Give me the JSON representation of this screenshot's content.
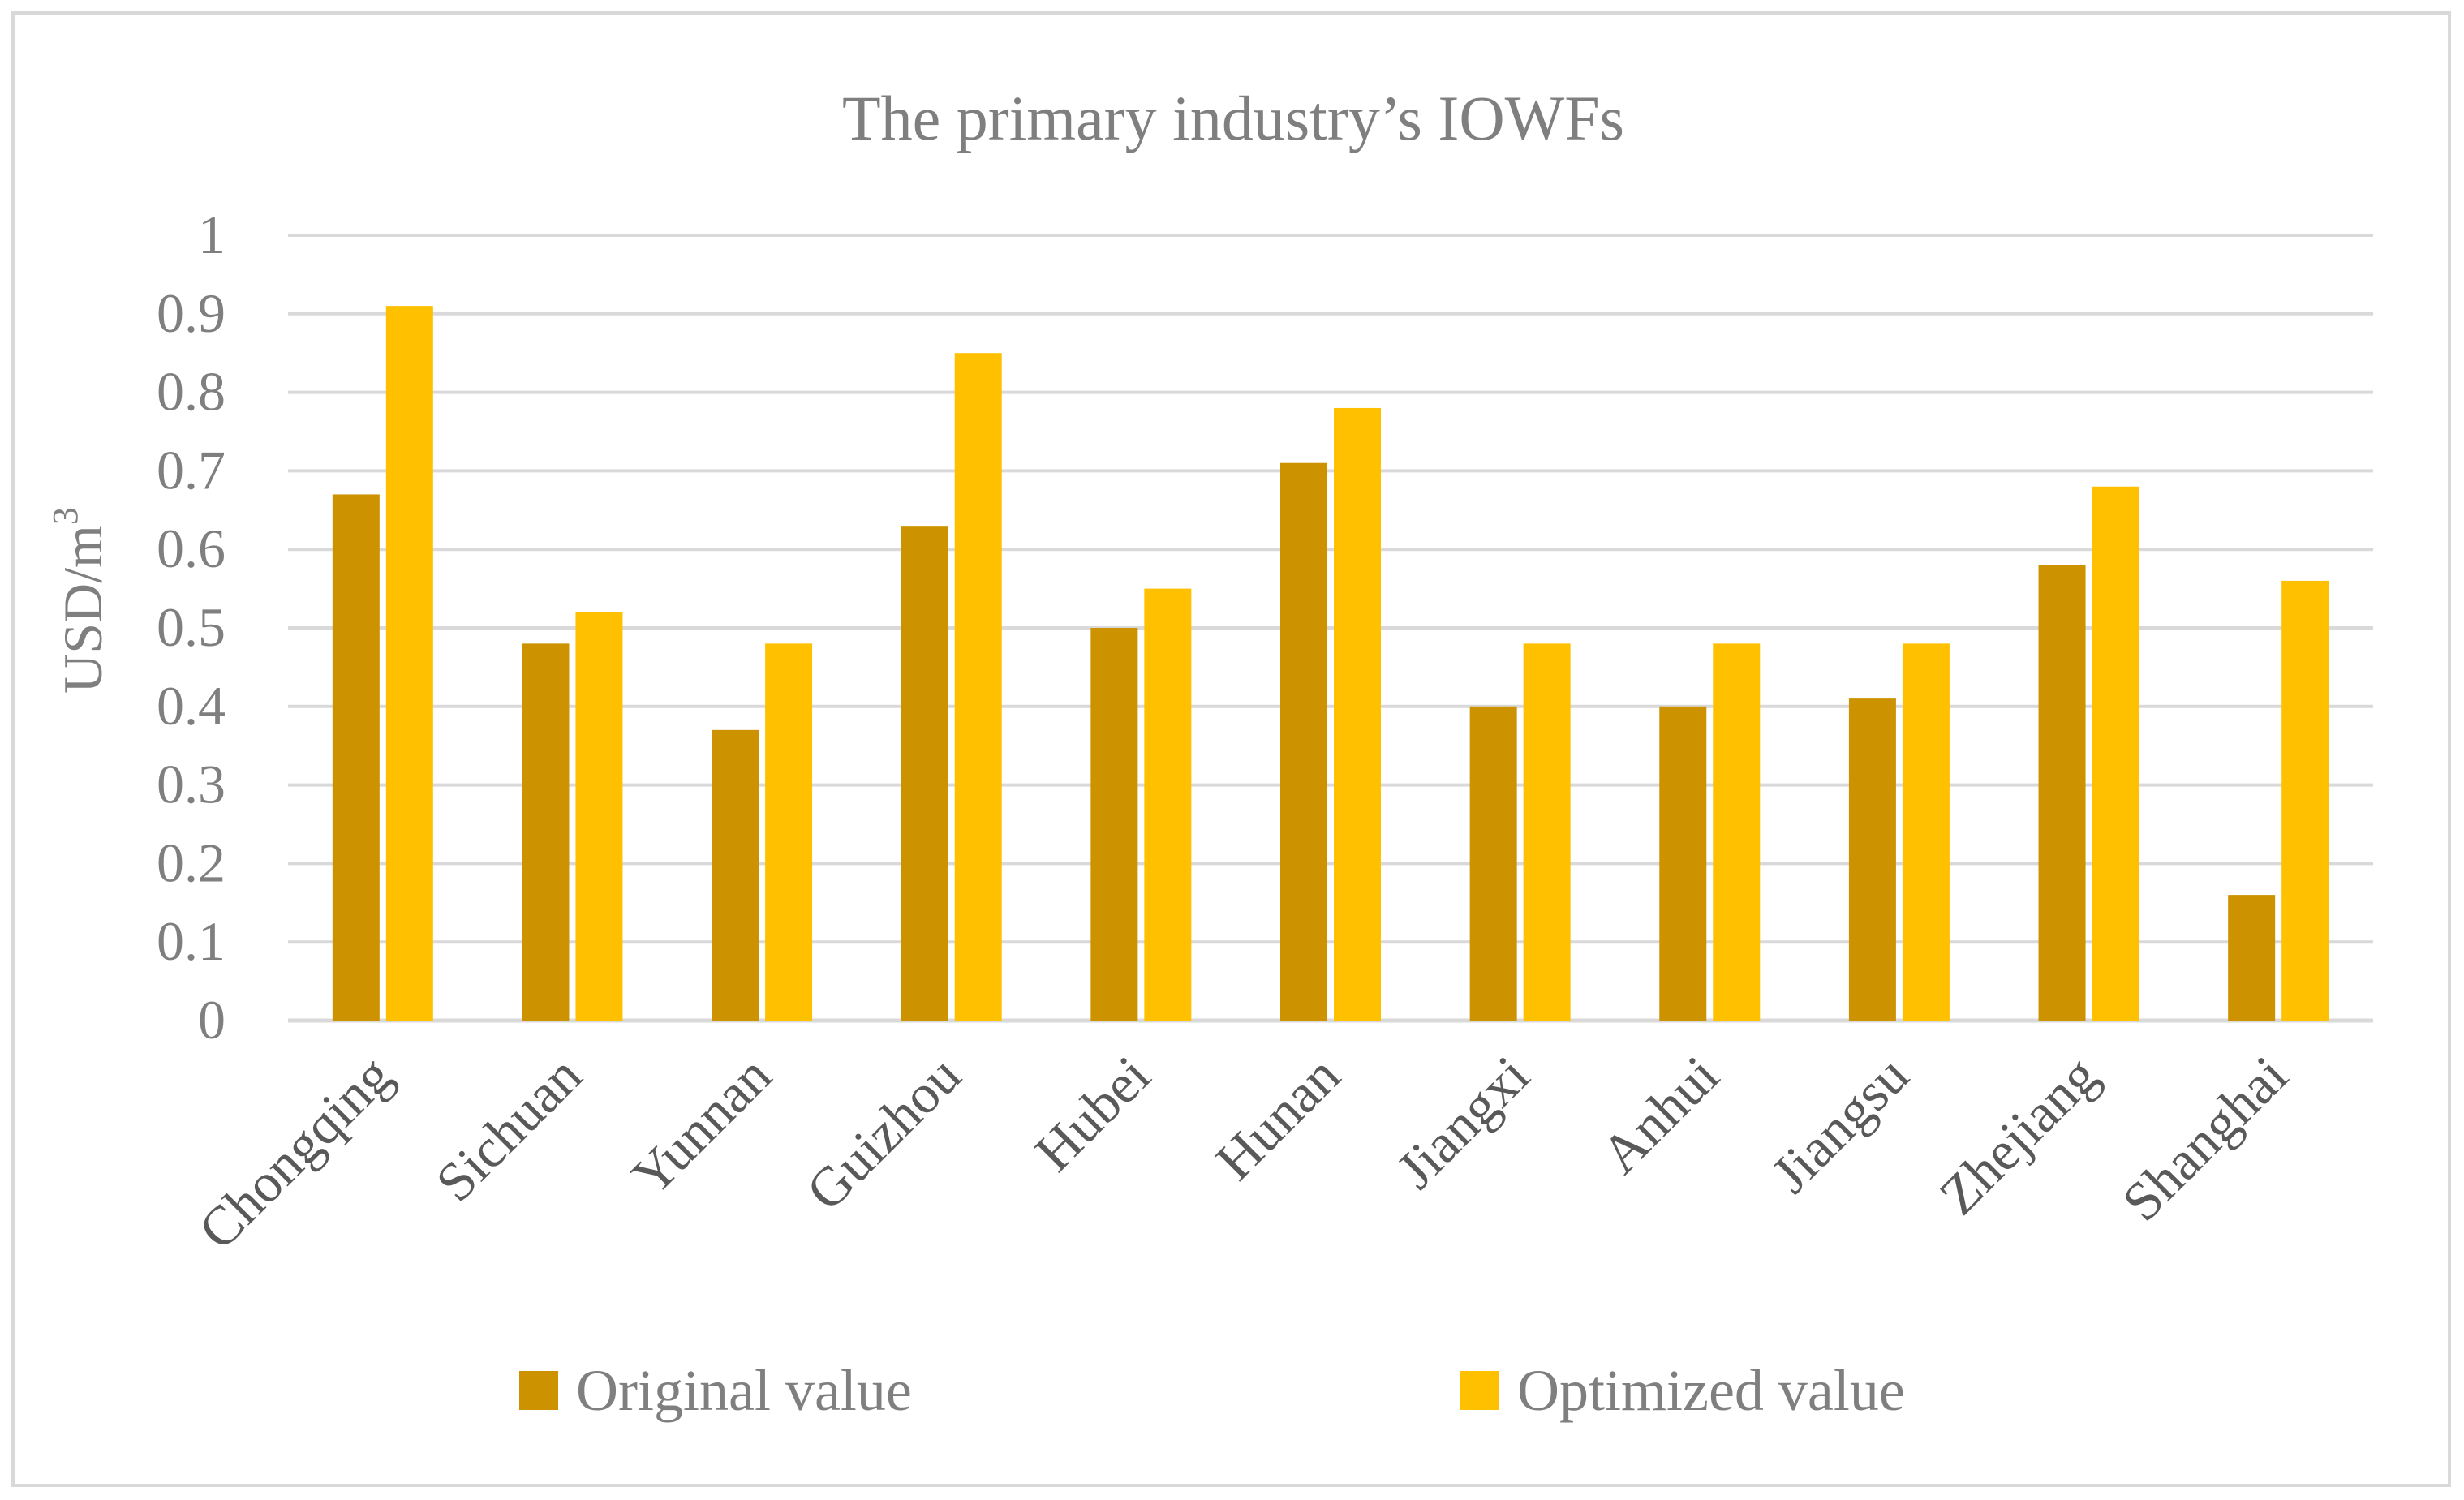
{
  "chart_data": {
    "type": "bar",
    "title": "The primary industry’s IOWFs",
    "ylabel": "USD/m",
    "ylabel_superscript": "3",
    "xlabel": "",
    "ylim": [
      0,
      1
    ],
    "yticks": [
      "0",
      "0.1",
      "0.2",
      "0.3",
      "0.4",
      "0.5",
      "0.6",
      "0.7",
      "0.8",
      "0.9",
      "1"
    ],
    "grid": true,
    "legend_position": "bottom",
    "categories": [
      "Chongqing",
      "Sichuan",
      "Yunnan",
      "Guizhou",
      "Hubei",
      "Hunan",
      "Jiangxi",
      "Anhui",
      "Jiangsu",
      "Zhejiang",
      "Shanghai"
    ],
    "series": [
      {
        "name": "Original value",
        "color": "#cc9200",
        "values": [
          0.67,
          0.48,
          0.37,
          0.63,
          0.5,
          0.71,
          0.4,
          0.4,
          0.41,
          0.58,
          0.16
        ]
      },
      {
        "name": "Optimized value",
        "color": "#ffc000",
        "values": [
          0.91,
          0.52,
          0.48,
          0.85,
          0.55,
          0.78,
          0.48,
          0.48,
          0.48,
          0.68,
          0.56
        ]
      }
    ],
    "colors": {
      "grid": "#d9d9d9",
      "text": "#7f7f7f",
      "category_text": "#595959"
    }
  }
}
